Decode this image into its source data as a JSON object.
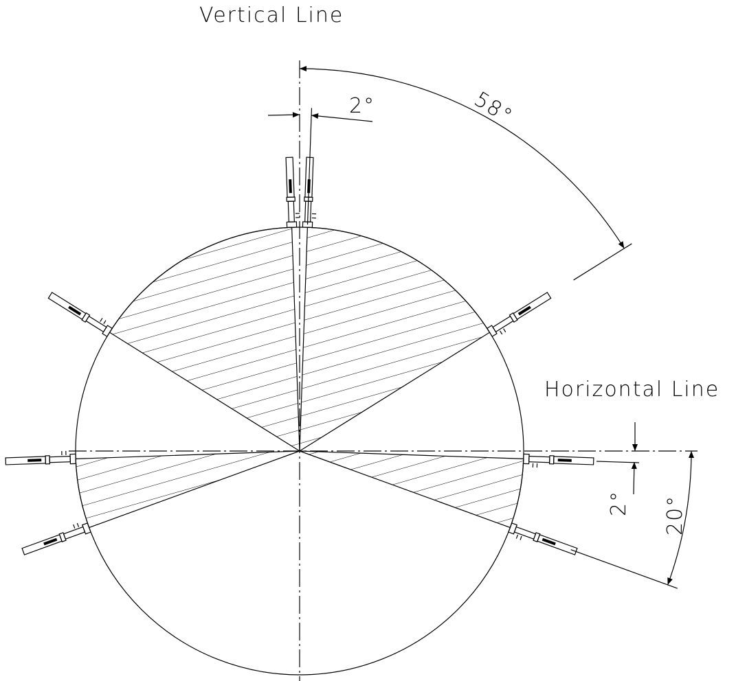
{
  "labels": {
    "vertical_line": "Vertical Line",
    "horizontal_line": "Horizontal Line"
  },
  "dimensions": {
    "top_gap": "2°",
    "top_angle": "58°",
    "side_gap": "2°",
    "side_angle": "20°"
  }
}
